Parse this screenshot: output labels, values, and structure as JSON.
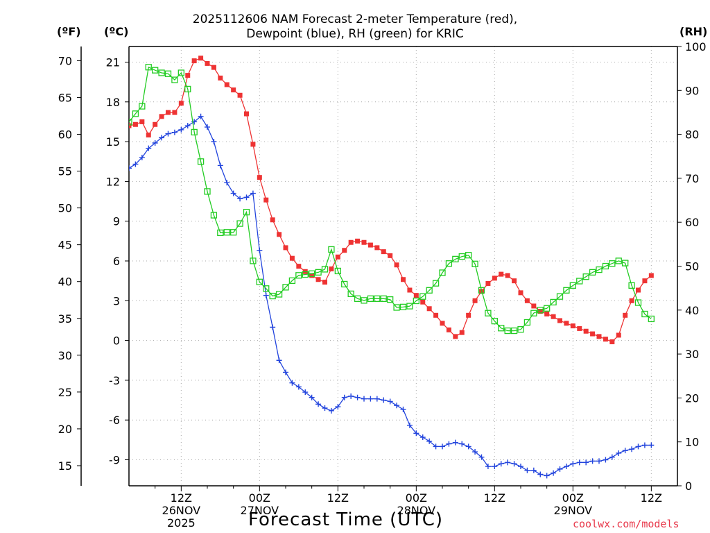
{
  "title_lines": [
    "2025112606 NAM Forecast 2-meter Temperature (red),",
    "Dewpoint (blue), RH (green) for KRIC"
  ],
  "units": {
    "f": "(ºF)",
    "c": "(ºC)",
    "rh": "(RH)"
  },
  "xlabel": "Forecast Time (UTC)",
  "credit": "coolwx.com/models",
  "colors": {
    "temp": "#ee3333",
    "dew": "#2244dd",
    "rh": "#22cc22",
    "grid": "#aaaaaa"
  },
  "chart_data": {
    "type": "line",
    "x_unit": "hours since 2025-11-26 06Z",
    "xlim": [
      0,
      63
    ],
    "ylim_c": [
      -11,
      22.5
    ],
    "ylim_rh": [
      0,
      100
    ],
    "f_ticks": [
      "70",
      "65",
      "60",
      "55",
      "50",
      "45",
      "40",
      "35",
      "30",
      "25",
      "20",
      "15"
    ],
    "c_ticks": [
      "21",
      "18",
      "15",
      "12",
      "9",
      "6",
      "3",
      "0",
      "-3",
      "-6",
      "-9"
    ],
    "rh_ticks": [
      "100",
      "90",
      "80",
      "70",
      "60",
      "50",
      "40",
      "30",
      "20",
      "10",
      "0"
    ],
    "x_ticks": [
      {
        "hour": 6,
        "lines": [
          "12Z",
          "26NOV",
          "2025"
        ]
      },
      {
        "hour": 15,
        "lines": [
          "00Z",
          "27NOV"
        ]
      },
      {
        "hour": 24,
        "lines": [
          "12Z"
        ]
      },
      {
        "hour": 33,
        "lines": [
          "00Z",
          "28NOV"
        ]
      },
      {
        "hour": 42,
        "lines": [
          "12Z"
        ]
      },
      {
        "hour": 51,
        "lines": [
          "00Z",
          "29NOV"
        ]
      },
      {
        "hour": 60,
        "lines": [
          "12Z"
        ]
      }
    ],
    "series": [
      {
        "name": "2-meter Temperature",
        "unit": "C",
        "marker": "square-filled",
        "values": [
          16.2,
          16.3,
          16.5,
          15.5,
          16.3,
          16.9,
          17.2,
          17.2,
          17.9,
          20.0,
          21.1,
          21.3,
          20.9,
          20.6,
          19.8,
          19.3,
          18.9,
          18.5,
          17.1,
          14.8,
          12.3,
          10.6,
          9.1,
          8.0,
          7.0,
          6.2,
          5.6,
          5.2,
          4.9,
          4.6,
          4.4,
          5.4,
          6.3,
          6.8,
          7.4,
          7.5,
          7.4,
          7.2,
          7.0,
          6.7,
          6.4,
          5.7,
          4.6,
          3.8,
          3.4,
          2.9,
          2.4,
          1.9,
          1.3,
          0.8,
          0.3,
          0.6,
          1.9,
          3.0,
          3.7,
          4.3,
          4.7,
          5.0,
          4.9,
          4.5,
          3.6,
          3.0,
          2.6,
          2.2,
          2.0,
          1.8,
          1.5,
          1.3,
          1.1,
          0.9,
          0.7,
          0.5,
          0.3,
          0.1,
          -0.1,
          0.4,
          1.9,
          3.0,
          3.8,
          4.5,
          4.9
        ]
      },
      {
        "name": "Dewpoint",
        "unit": "C",
        "marker": "plus",
        "values": [
          13.0,
          13.3,
          13.8,
          14.5,
          14.9,
          15.3,
          15.6,
          15.7,
          15.9,
          16.2,
          16.5,
          16.9,
          16.1,
          15.0,
          13.2,
          11.9,
          11.1,
          10.7,
          10.8,
          11.1,
          6.8,
          3.4,
          1.0,
          -1.5,
          -2.4,
          -3.2,
          -3.5,
          -3.9,
          -4.3,
          -4.8,
          -5.1,
          -5.3,
          -5.0,
          -4.3,
          -4.2,
          -4.3,
          -4.4,
          -4.4,
          -4.4,
          -4.5,
          -4.6,
          -4.9,
          -5.2,
          -6.4,
          -7.0,
          -7.3,
          -7.6,
          -8.0,
          -8.0,
          -7.8,
          -7.7,
          -7.8,
          -8.0,
          -8.4,
          -8.8,
          -9.5,
          -9.5,
          -9.3,
          -9.2,
          -9.3,
          -9.5,
          -9.8,
          -9.8,
          -10.1,
          -10.2,
          -10.0,
          -9.7,
          -9.5,
          -9.3,
          -9.2,
          -9.2,
          -9.1,
          -9.1,
          -9.0,
          -8.8,
          -8.5,
          -8.3,
          -8.2,
          -8.0,
          -7.9,
          -7.9
        ]
      },
      {
        "name": "Relative Humidity",
        "unit": "%",
        "marker": "square-open",
        "values": [
          82.8,
          84.7,
          86.4,
          95.3,
          94.6,
          94.0,
          93.8,
          92.4,
          94.0,
          90.3,
          80.5,
          73.8,
          67.0,
          61.6,
          57.6,
          57.7,
          57.7,
          59.7,
          62.3,
          51.2,
          46.4,
          44.9,
          43.2,
          43.6,
          45.2,
          46.7,
          47.9,
          48.1,
          48.3,
          48.6,
          49.3,
          53.8,
          48.9,
          45.9,
          43.7,
          42.6,
          42.2,
          42.6,
          42.6,
          42.6,
          42.4,
          40.6,
          40.7,
          40.9,
          42.1,
          43.1,
          44.5,
          46.1,
          48.5,
          50.6,
          51.6,
          52.2,
          52.5,
          50.5,
          44.5,
          39.3,
          37.5,
          35.9,
          35.3,
          35.3,
          35.6,
          37.2,
          39.3,
          40.0,
          40.4,
          41.8,
          43.1,
          44.5,
          45.6,
          46.6,
          47.6,
          48.6,
          49.2,
          50.0,
          50.6,
          51.2,
          50.7,
          45.6,
          41.7,
          39.1,
          38.0
        ]
      }
    ]
  }
}
